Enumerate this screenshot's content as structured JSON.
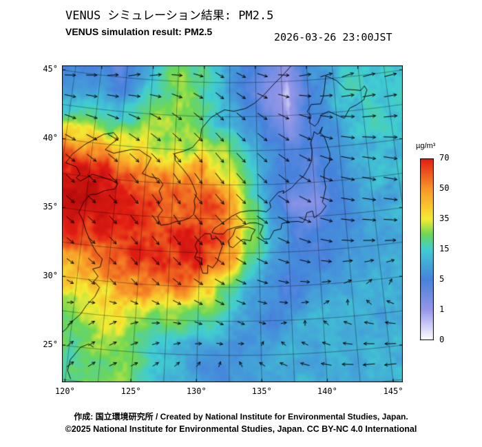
{
  "header": {
    "title_ja": "VENUS シミュレーション結果: PM2.5",
    "title_en": "VENUS simulation result: PM2.5",
    "timestamp": "2026-03-26 23:00JST"
  },
  "footer": {
    "credit": "作成: 国立環境研究所 / Created by National Institute for Environmental Studies, Japan.",
    "copyright": "©2025 National Institute for Environmental Studies, Japan. CC BY-NC 4.0 International"
  },
  "legend": {
    "unit": "µg/m³",
    "ticks": [
      0,
      1,
      5,
      15,
      35,
      50,
      70
    ]
  },
  "axes": {
    "lat_ticks": [
      "45°",
      "40°",
      "35°",
      "30°",
      "25°"
    ],
    "lat_values": [
      45,
      40,
      35,
      30,
      25
    ],
    "lon_ticks": [
      "120°",
      "125°",
      "130°",
      "135°",
      "140°",
      "145°"
    ],
    "lon_values": [
      120,
      125,
      130,
      135,
      140,
      145
    ]
  },
  "chart_data": {
    "type": "heatmap",
    "title": "VENUS simulation result: PM2.5",
    "variable": "PM2.5 surface concentration",
    "unit": "µg/m³",
    "timestamp": "2026-03-26 23:00JST",
    "region": {
      "lon_range": [
        120,
        146
      ],
      "lat_range": [
        23,
        46
      ]
    },
    "colorbar_ticks": [
      0,
      1,
      5,
      15,
      35,
      50,
      70
    ],
    "colorscale": [
      [
        0,
        "#ffffff"
      ],
      [
        1,
        "#9696e8"
      ],
      [
        5,
        "#4682dc"
      ],
      [
        15,
        "#40cdd2"
      ],
      [
        25,
        "#6ed755"
      ],
      [
        35,
        "#f5eb32"
      ],
      [
        50,
        "#f89628"
      ],
      [
        70,
        "#e11e14"
      ],
      [
        90,
        "#b40a0a"
      ]
    ],
    "grid_lons": [
      120,
      122,
      124,
      126,
      128,
      130,
      132,
      134,
      136,
      138,
      140,
      142,
      144,
      146
    ],
    "grid_lats": [
      46,
      44,
      42,
      40,
      38,
      36,
      34,
      32,
      30,
      28,
      26,
      24
    ],
    "pm25_values": [
      [
        5,
        3,
        8,
        18,
        25,
        18,
        10,
        6,
        3,
        1,
        6,
        10,
        14,
        14
      ],
      [
        8,
        5,
        12,
        22,
        28,
        20,
        12,
        5,
        2,
        0.5,
        5,
        10,
        15,
        15
      ],
      [
        18,
        14,
        24,
        30,
        26,
        18,
        13,
        7,
        4,
        1,
        5,
        9,
        13,
        15
      ],
      [
        45,
        40,
        34,
        30,
        28,
        35,
        30,
        14,
        7,
        4,
        4,
        7,
        11,
        13
      ],
      [
        75,
        68,
        58,
        50,
        46,
        55,
        40,
        18,
        8,
        5,
        4,
        7,
        11,
        13
      ],
      [
        80,
        76,
        70,
        65,
        60,
        66,
        56,
        28,
        8,
        1.5,
        1.5,
        5,
        9,
        11
      ],
      [
        70,
        72,
        68,
        70,
        66,
        70,
        60,
        33,
        10,
        5,
        4,
        7,
        9,
        11
      ],
      [
        55,
        60,
        65,
        70,
        68,
        72,
        55,
        22,
        9,
        7,
        5,
        7,
        9,
        11
      ],
      [
        40,
        45,
        50,
        55,
        60,
        45,
        28,
        13,
        7,
        4,
        7,
        9,
        11,
        11
      ],
      [
        30,
        32,
        35,
        30,
        28,
        24,
        16,
        9,
        5,
        9,
        11,
        11,
        11,
        11
      ],
      [
        24,
        28,
        30,
        22,
        15,
        11,
        9,
        7,
        9,
        11,
        11,
        10,
        11,
        11
      ],
      [
        20,
        25,
        28,
        17,
        11,
        8,
        7,
        9,
        11,
        11,
        10,
        10,
        11,
        11
      ]
    ],
    "wind": {
      "grid_lons": [
        120,
        124,
        128,
        132,
        136,
        140,
        143,
        146
      ],
      "grid_lats": [
        46,
        42,
        38,
        34,
        30,
        27,
        24
      ],
      "u": [
        [
          4,
          5,
          4,
          3,
          4,
          5,
          5,
          5
        ],
        [
          5,
          5,
          4,
          3,
          4,
          5,
          6,
          6
        ],
        [
          4,
          4,
          3,
          4,
          4,
          5,
          6,
          6
        ],
        [
          3,
          3,
          3,
          4,
          5,
          5,
          6,
          6
        ],
        [
          2,
          2,
          3,
          4,
          4,
          3,
          2,
          1
        ],
        [
          1,
          2,
          2,
          2,
          1,
          -1,
          -3,
          -4
        ],
        [
          2,
          2,
          1,
          0,
          -2,
          -4,
          -5,
          -5
        ]
      ],
      "v": [
        [
          1,
          2,
          0,
          -2,
          -1,
          1,
          2,
          1
        ],
        [
          -1,
          -2,
          -3,
          -3,
          -3,
          -2,
          -1,
          0
        ],
        [
          -3,
          -4,
          -4,
          -5,
          -4,
          -3,
          -2,
          -2
        ],
        [
          -2,
          -3,
          -4,
          -4,
          -3,
          -2,
          -1,
          -1
        ],
        [
          -1,
          -2,
          -2,
          -2,
          -1,
          0,
          1,
          1
        ],
        [
          1,
          1,
          0,
          -1,
          0,
          1,
          1,
          1
        ],
        [
          2,
          1,
          1,
          1,
          1,
          1,
          0,
          0
        ]
      ]
    },
    "coastlines": [
      [
        [
          119.3,
          39.8
        ],
        [
          120.0,
          40.2
        ],
        [
          120.9,
          40.7
        ],
        [
          121.8,
          40.9
        ],
        [
          122.3,
          40.5
        ],
        [
          121.6,
          40.0
        ],
        [
          121.2,
          39.6
        ],
        [
          122.0,
          39.4
        ],
        [
          122.8,
          39.6
        ],
        [
          123.6,
          39.8
        ],
        [
          124.3,
          39.8
        ]
      ],
      [
        [
          119.3,
          39.8
        ],
        [
          118.3,
          39.0
        ],
        [
          117.8,
          38.3
        ],
        [
          118.8,
          38.1
        ],
        [
          119.2,
          37.6
        ],
        [
          118.9,
          37.3
        ],
        [
          119.3,
          37.1
        ],
        [
          120.3,
          37.7
        ],
        [
          121.0,
          37.6
        ],
        [
          122.1,
          37.4
        ],
        [
          122.6,
          37.2
        ],
        [
          122.4,
          36.8
        ],
        [
          121.5,
          36.6
        ],
        [
          120.9,
          36.3
        ],
        [
          120.3,
          36.2
        ],
        [
          119.8,
          35.6
        ],
        [
          119.5,
          34.8
        ],
        [
          119.9,
          34.3
        ],
        [
          120.3,
          33.5
        ],
        [
          120.9,
          32.6
        ],
        [
          121.4,
          32.0
        ],
        [
          121.9,
          31.6
        ],
        [
          121.8,
          31.0
        ],
        [
          121.2,
          30.8
        ],
        [
          121.7,
          30.3
        ],
        [
          121.4,
          29.9
        ],
        [
          121.9,
          29.5
        ],
        [
          121.6,
          28.8
        ],
        [
          121.0,
          28.1
        ],
        [
          120.6,
          27.4
        ],
        [
          120.0,
          26.8
        ],
        [
          119.6,
          26.2
        ],
        [
          119.0,
          25.6
        ],
        [
          118.2,
          24.9
        ],
        [
          117.3,
          24.2
        ],
        [
          116.4,
          23.6
        ],
        [
          115.4,
          23.0
        ]
      ],
      [
        [
          124.3,
          39.8
        ],
        [
          124.9,
          39.5
        ],
        [
          125.4,
          39.3
        ],
        [
          125.1,
          38.7
        ],
        [
          124.7,
          38.1
        ],
        [
          125.4,
          37.9
        ],
        [
          126.2,
          37.8
        ],
        [
          126.6,
          37.4
        ],
        [
          126.3,
          36.9
        ],
        [
          126.6,
          36.3
        ],
        [
          126.3,
          35.9
        ],
        [
          126.7,
          35.5
        ],
        [
          126.3,
          35.0
        ],
        [
          126.6,
          34.4
        ],
        [
          127.3,
          34.5
        ],
        [
          127.8,
          34.7
        ],
        [
          128.4,
          34.8
        ],
        [
          129.0,
          35.0
        ],
        [
          129.4,
          35.3
        ],
        [
          129.5,
          35.8
        ],
        [
          129.4,
          36.3
        ],
        [
          129.6,
          36.8
        ],
        [
          129.3,
          37.4
        ],
        [
          128.9,
          38.0
        ],
        [
          128.3,
          38.6
        ],
        [
          127.6,
          39.2
        ],
        [
          127.5,
          39.7
        ],
        [
          128.3,
          39.9
        ],
        [
          129.1,
          40.2
        ],
        [
          129.8,
          40.9
        ],
        [
          129.9,
          41.6
        ],
        [
          130.4,
          42.1
        ],
        [
          130.7,
          42.4
        ]
      ],
      [
        [
          130.7,
          42.4
        ],
        [
          131.3,
          42.7
        ],
        [
          132.0,
          43.0
        ],
        [
          132.9,
          42.9
        ],
        [
          134.0,
          43.1
        ],
        [
          134.9,
          43.5
        ],
        [
          135.8,
          44.1
        ],
        [
          136.7,
          44.8
        ],
        [
          137.7,
          45.5
        ],
        [
          138.6,
          46.2
        ]
      ],
      [
        [
          140.4,
          41.6
        ],
        [
          139.9,
          41.9
        ],
        [
          140.1,
          42.4
        ],
        [
          139.8,
          42.7
        ],
        [
          140.2,
          43.2
        ],
        [
          141.1,
          43.2
        ],
        [
          141.4,
          43.7
        ],
        [
          141.6,
          44.4
        ],
        [
          141.8,
          45.2
        ],
        [
          142.1,
          45.1
        ],
        [
          142.8,
          44.8
        ],
        [
          143.6,
          44.1
        ],
        [
          144.4,
          44.0
        ],
        [
          145.0,
          43.9
        ],
        [
          145.4,
          44.2
        ],
        [
          145.6,
          43.9
        ],
        [
          145.2,
          43.2
        ],
        [
          144.5,
          42.9
        ],
        [
          143.8,
          42.7
        ],
        [
          143.2,
          42.0
        ],
        [
          142.5,
          42.3
        ],
        [
          141.8,
          42.6
        ],
        [
          141.1,
          42.4
        ],
        [
          140.7,
          41.8
        ],
        [
          140.4,
          41.6
        ]
      ],
      [
        [
          141.1,
          41.5
        ],
        [
          140.8,
          41.1
        ],
        [
          141.2,
          40.8
        ],
        [
          141.4,
          40.2
        ],
        [
          141.6,
          39.5
        ],
        [
          141.5,
          38.9
        ],
        [
          141.0,
          38.4
        ],
        [
          140.9,
          37.8
        ],
        [
          141.0,
          37.1
        ],
        [
          140.8,
          36.5
        ],
        [
          140.6,
          36.0
        ],
        [
          140.9,
          35.7
        ],
        [
          140.4,
          35.2
        ],
        [
          139.8,
          34.9
        ],
        [
          139.7,
          35.4
        ],
        [
          139.2,
          35.3
        ],
        [
          139.0,
          34.8
        ],
        [
          138.8,
          34.6
        ],
        [
          138.4,
          34.7
        ],
        [
          137.6,
          34.7
        ],
        [
          137.0,
          34.6
        ],
        [
          136.9,
          34.2
        ],
        [
          136.3,
          34.1
        ],
        [
          135.9,
          33.5
        ],
        [
          135.4,
          33.5
        ],
        [
          135.1,
          33.9
        ],
        [
          135.4,
          34.5
        ],
        [
          134.8,
          34.7
        ],
        [
          134.2,
          34.7
        ],
        [
          133.6,
          34.5
        ],
        [
          133.0,
          34.4
        ],
        [
          132.3,
          34.2
        ],
        [
          132.0,
          33.9
        ],
        [
          131.4,
          33.9
        ],
        [
          131.0,
          34.0
        ],
        [
          131.2,
          34.3
        ],
        [
          131.9,
          34.7
        ],
        [
          132.7,
          35.2
        ],
        [
          133.4,
          35.5
        ],
        [
          134.2,
          35.6
        ],
        [
          135.0,
          35.6
        ],
        [
          135.7,
          35.5
        ],
        [
          136.1,
          35.8
        ],
        [
          136.0,
          36.2
        ],
        [
          136.8,
          36.9
        ],
        [
          137.3,
          37.0
        ],
        [
          137.2,
          36.8
        ],
        [
          138.0,
          37.2
        ],
        [
          138.6,
          37.7
        ],
        [
          139.1,
          38.0
        ],
        [
          139.6,
          38.6
        ],
        [
          139.9,
          39.1
        ],
        [
          140.0,
          39.8
        ],
        [
          139.9,
          40.4
        ],
        [
          140.2,
          40.9
        ],
        [
          140.3,
          41.2
        ],
        [
          140.6,
          41.0
        ],
        [
          140.9,
          41.1
        ],
        [
          141.1,
          41.5
        ]
      ],
      [
        [
          130.9,
          33.9
        ],
        [
          130.4,
          33.9
        ],
        [
          129.8,
          33.4
        ],
        [
          129.6,
          33.0
        ],
        [
          129.8,
          32.6
        ],
        [
          129.6,
          32.2
        ],
        [
          130.2,
          32.1
        ],
        [
          130.1,
          31.5
        ],
        [
          130.3,
          31.0
        ],
        [
          130.7,
          31.0
        ],
        [
          130.7,
          31.6
        ],
        [
          131.1,
          31.4
        ],
        [
          131.5,
          31.9
        ],
        [
          131.7,
          32.5
        ],
        [
          131.9,
          33.0
        ],
        [
          131.7,
          33.4
        ],
        [
          131.4,
          33.6
        ],
        [
          131.0,
          33.5
        ],
        [
          130.9,
          33.9
        ]
      ],
      [
        [
          134.7,
          34.2
        ],
        [
          134.4,
          33.8
        ],
        [
          134.3,
          33.4
        ],
        [
          133.6,
          33.5
        ],
        [
          133.3,
          33.3
        ],
        [
          132.8,
          32.9
        ],
        [
          132.5,
          33.0
        ],
        [
          132.4,
          33.4
        ],
        [
          132.8,
          33.8
        ],
        [
          133.0,
          34.3
        ],
        [
          133.6,
          34.4
        ],
        [
          134.1,
          34.4
        ],
        [
          134.7,
          34.2
        ]
      ],
      [
        [
          121.9,
          25.1
        ],
        [
          121.5,
          25.3
        ],
        [
          120.9,
          25.0
        ],
        [
          120.2,
          24.0
        ],
        [
          120.1,
          23.2
        ],
        [
          120.4,
          22.6
        ]
      ]
    ]
  }
}
